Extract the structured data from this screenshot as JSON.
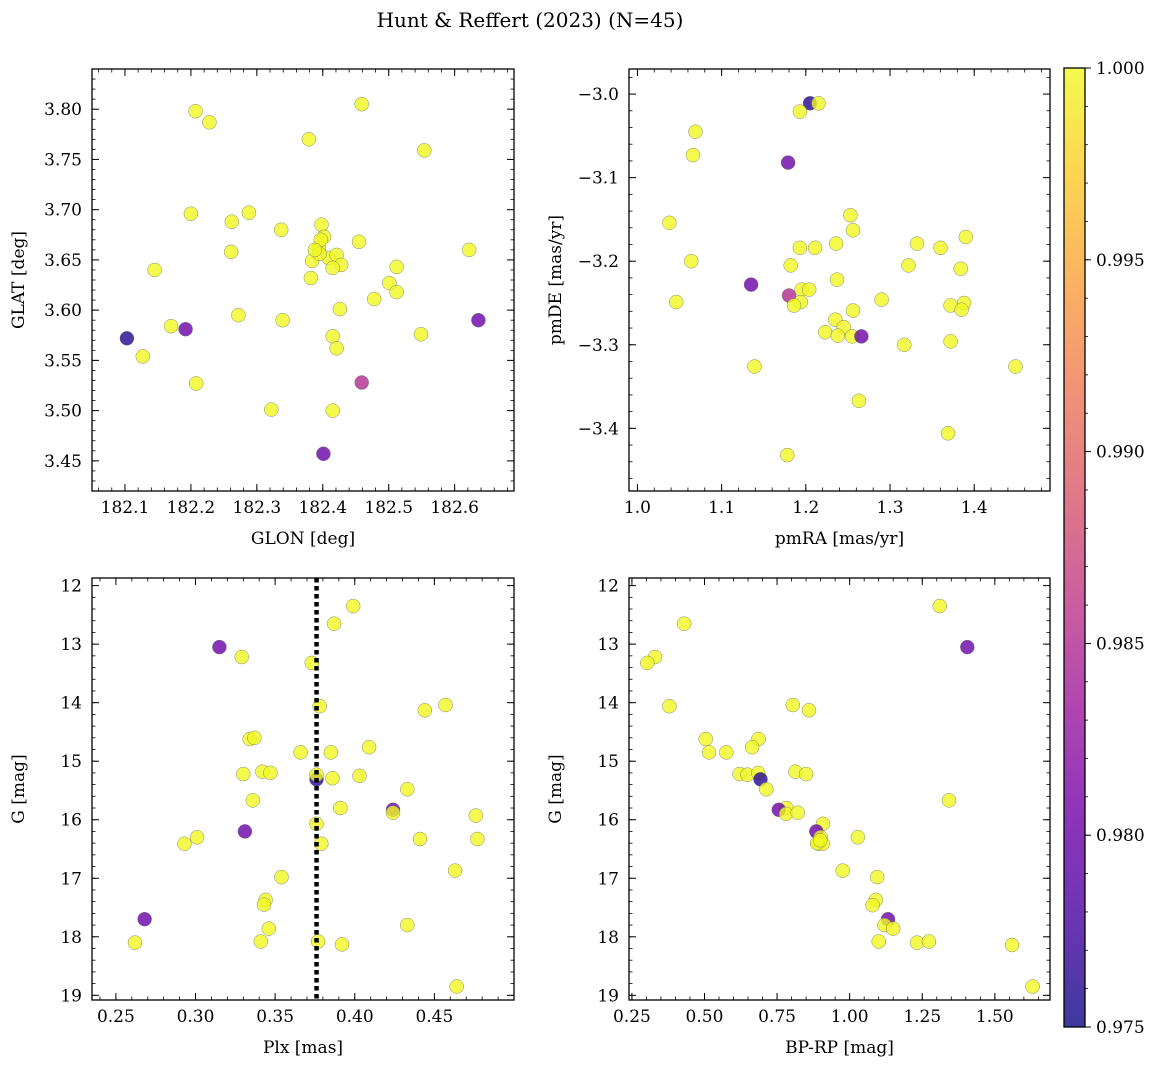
{
  "figure": {
    "title": "Hunt & Reffert (2023) (N=45)"
  },
  "colormap": {
    "name": "plasma",
    "stops": [
      "#0d0887",
      "#46039f",
      "#7201a8",
      "#9c179e",
      "#bd3786",
      "#d8576b",
      "#ed7953",
      "#fb9f3a",
      "#fdca26",
      "#f0f921"
    ],
    "range": [
      0.975,
      1.0
    ],
    "tick_values": [
      0.975,
      0.98,
      0.985,
      0.99,
      0.995,
      1.0
    ],
    "tick_labels": [
      "0.975",
      "0.980",
      "0.985",
      "0.990",
      "0.995",
      "1.000"
    ]
  },
  "chart_data": [
    {
      "type": "scatter",
      "xlabel": "GLON [deg]",
      "ylabel": "GLAT [deg]",
      "xlim": [
        182.05,
        182.69
      ],
      "ylim": [
        3.42,
        3.84
      ],
      "invert_y": false,
      "xticks": [
        182.1,
        182.2,
        182.3,
        182.4,
        182.5,
        182.6
      ],
      "xtick_labels": [
        "182.1",
        "182.2",
        "182.3",
        "182.4",
        "182.5",
        "182.6"
      ],
      "yticks": [
        3.45,
        3.5,
        3.55,
        3.6,
        3.65,
        3.7,
        3.75,
        3.8
      ],
      "ytick_labels": [
        "3.45",
        "3.50",
        "3.55",
        "3.60",
        "3.65",
        "3.70",
        "3.75",
        "3.80"
      ],
      "points": [
        [
          182.207,
          3.798,
          1.0
        ],
        [
          182.228,
          3.787,
          1.0
        ],
        [
          182.459,
          3.805,
          1.0
        ],
        [
          182.554,
          3.759,
          1.0
        ],
        [
          182.379,
          3.77,
          1.0
        ],
        [
          182.2,
          3.696,
          1.0
        ],
        [
          182.288,
          3.697,
          1.0
        ],
        [
          182.262,
          3.688,
          1.0
        ],
        [
          182.337,
          3.68,
          1.0
        ],
        [
          182.398,
          3.685,
          1.0
        ],
        [
          182.402,
          3.673,
          1.0
        ],
        [
          182.394,
          3.662,
          1.0
        ],
        [
          182.261,
          3.658,
          1.0
        ],
        [
          182.455,
          3.668,
          1.0
        ],
        [
          182.409,
          3.652,
          1.0
        ],
        [
          182.384,
          3.649,
          1.0
        ],
        [
          182.421,
          3.655,
          1.0
        ],
        [
          182.428,
          3.645,
          1.0
        ],
        [
          182.415,
          3.642,
          1.0
        ],
        [
          182.145,
          3.64,
          1.0
        ],
        [
          182.382,
          3.632,
          1.0
        ],
        [
          182.512,
          3.643,
          1.0
        ],
        [
          182.622,
          3.66,
          1.0
        ],
        [
          182.501,
          3.627,
          1.0
        ],
        [
          182.512,
          3.618,
          1.0
        ],
        [
          182.478,
          3.611,
          1.0
        ],
        [
          182.426,
          3.601,
          1.0
        ],
        [
          182.272,
          3.595,
          1.0
        ],
        [
          182.339,
          3.59,
          1.0
        ],
        [
          182.17,
          3.584,
          1.0
        ],
        [
          182.192,
          3.581,
          0.98
        ],
        [
          182.103,
          3.572,
          0.976
        ],
        [
          182.127,
          3.554,
          1.0
        ],
        [
          182.415,
          3.574,
          1.0
        ],
        [
          182.421,
          3.562,
          1.0
        ],
        [
          182.549,
          3.576,
          1.0
        ],
        [
          182.636,
          3.59,
          0.98
        ],
        [
          182.208,
          3.527,
          1.0
        ],
        [
          182.459,
          3.528,
          0.985
        ],
        [
          182.322,
          3.501,
          1.0
        ],
        [
          182.415,
          3.5,
          1.0
        ],
        [
          182.401,
          3.457,
          0.98
        ],
        [
          182.395,
          3.656,
          1.0
        ],
        [
          182.397,
          3.67,
          1.0
        ],
        [
          182.388,
          3.66,
          1.0
        ]
      ]
    },
    {
      "type": "scatter",
      "xlabel": "pmRA [mas/yr]",
      "ylabel": "pmDE [mas/yr]",
      "xlim": [
        0.99,
        1.49
      ],
      "ylim": [
        -3.475,
        -2.97
      ],
      "invert_y": false,
      "xticks": [
        1.0,
        1.1,
        1.2,
        1.3,
        1.4
      ],
      "xtick_labels": [
        "1.0",
        "1.1",
        "1.2",
        "1.3",
        "1.4"
      ],
      "yticks": [
        -3.4,
        -3.3,
        -3.2,
        -3.1,
        -3.0
      ],
      "ytick_labels": [
        "−3.4",
        "−3.3",
        "−3.2",
        "−3.1",
        "−3.0"
      ],
      "points": [
        [
          1.205,
          -3.011,
          0.976
        ],
        [
          1.215,
          -3.011,
          1.0
        ],
        [
          1.193,
          -3.021,
          1.0
        ],
        [
          1.069,
          -3.045,
          1.0
        ],
        [
          1.066,
          -3.073,
          1.0
        ],
        [
          1.179,
          -3.082,
          0.98
        ],
        [
          1.038,
          -3.154,
          1.0
        ],
        [
          1.253,
          -3.145,
          1.0
        ],
        [
          1.256,
          -3.163,
          1.0
        ],
        [
          1.332,
          -3.179,
          1.0
        ],
        [
          1.236,
          -3.179,
          1.0
        ],
        [
          1.193,
          -3.184,
          1.0
        ],
        [
          1.211,
          -3.184,
          1.0
        ],
        [
          1.36,
          -3.184,
          1.0
        ],
        [
          1.39,
          -3.171,
          1.0
        ],
        [
          1.064,
          -3.2,
          1.0
        ],
        [
          1.182,
          -3.205,
          1.0
        ],
        [
          1.322,
          -3.205,
          1.0
        ],
        [
          1.384,
          -3.209,
          1.0
        ],
        [
          1.237,
          -3.222,
          1.0
        ],
        [
          1.135,
          -3.228,
          0.98
        ],
        [
          1.195,
          -3.234,
          1.0
        ],
        [
          1.204,
          -3.234,
          1.0
        ],
        [
          1.18,
          -3.241,
          0.985
        ],
        [
          1.046,
          -3.249,
          1.0
        ],
        [
          1.194,
          -3.249,
          1.0
        ],
        [
          1.186,
          -3.253,
          1.0
        ],
        [
          1.372,
          -3.253,
          1.0
        ],
        [
          1.388,
          -3.25,
          1.0
        ],
        [
          1.29,
          -3.246,
          1.0
        ],
        [
          1.385,
          -3.258,
          1.0
        ],
        [
          1.256,
          -3.259,
          1.0
        ],
        [
          1.235,
          -3.27,
          1.0
        ],
        [
          1.245,
          -3.279,
          1.0
        ],
        [
          1.223,
          -3.285,
          1.0
        ],
        [
          1.238,
          -3.289,
          1.0
        ],
        [
          1.255,
          -3.29,
          1.0
        ],
        [
          1.266,
          -3.29,
          0.98
        ],
        [
          1.317,
          -3.3,
          1.0
        ],
        [
          1.372,
          -3.296,
          1.0
        ],
        [
          1.139,
          -3.326,
          1.0
        ],
        [
          1.449,
          -3.326,
          1.0
        ],
        [
          1.263,
          -3.367,
          1.0
        ],
        [
          1.369,
          -3.406,
          1.0
        ],
        [
          1.178,
          -3.432,
          1.0
        ]
      ]
    },
    {
      "type": "scatter",
      "xlabel": "Plx [mas]",
      "ylabel": "G [mag]",
      "xlim": [
        0.235,
        0.5
      ],
      "ylim": [
        19.08,
        11.87
      ],
      "invert_y": true,
      "vline": 0.376,
      "xticks": [
        0.25,
        0.3,
        0.35,
        0.4,
        0.45
      ],
      "xtick_labels": [
        "0.25",
        "0.30",
        "0.35",
        "0.40",
        "0.45"
      ],
      "yticks": [
        12,
        13,
        14,
        15,
        16,
        17,
        18,
        19
      ],
      "ytick_labels": [
        "12",
        "13",
        "14",
        "15",
        "16",
        "17",
        "18",
        "19"
      ],
      "points": [
        [
          0.399,
          12.35,
          1.0
        ],
        [
          0.387,
          12.65,
          1.0
        ],
        [
          0.315,
          13.05,
          0.98
        ],
        [
          0.329,
          13.22,
          1.0
        ],
        [
          0.373,
          13.32,
          1.0
        ],
        [
          0.378,
          14.06,
          1.0
        ],
        [
          0.457,
          14.04,
          1.0
        ],
        [
          0.444,
          14.13,
          1.0
        ],
        [
          0.334,
          14.62,
          1.0
        ],
        [
          0.337,
          14.6,
          1.0
        ],
        [
          0.409,
          14.76,
          1.0
        ],
        [
          0.366,
          14.85,
          1.0
        ],
        [
          0.385,
          14.85,
          1.0
        ],
        [
          0.33,
          15.22,
          1.0
        ],
        [
          0.342,
          15.18,
          1.0
        ],
        [
          0.347,
          15.2,
          1.0
        ],
        [
          0.376,
          15.31,
          0.976
        ],
        [
          0.376,
          15.23,
          1.0
        ],
        [
          0.386,
          15.29,
          1.0
        ],
        [
          0.403,
          15.25,
          1.0
        ],
        [
          0.336,
          15.67,
          1.0
        ],
        [
          0.433,
          15.48,
          1.0
        ],
        [
          0.391,
          15.8,
          1.0
        ],
        [
          0.424,
          15.83,
          0.98
        ],
        [
          0.424,
          15.88,
          1.0
        ],
        [
          0.476,
          15.93,
          1.0
        ],
        [
          0.376,
          16.07,
          1.0
        ],
        [
          0.331,
          16.2,
          0.98
        ],
        [
          0.301,
          16.3,
          1.0
        ],
        [
          0.441,
          16.33,
          1.0
        ],
        [
          0.477,
          16.33,
          1.0
        ],
        [
          0.293,
          16.41,
          1.0
        ],
        [
          0.379,
          16.41,
          1.0
        ],
        [
          0.463,
          16.87,
          1.0
        ],
        [
          0.354,
          16.98,
          1.0
        ],
        [
          0.344,
          17.37,
          1.0
        ],
        [
          0.343,
          17.45,
          1.0
        ],
        [
          0.268,
          17.7,
          0.98
        ],
        [
          0.346,
          17.86,
          1.0
        ],
        [
          0.433,
          17.8,
          1.0
        ],
        [
          0.262,
          18.1,
          1.0
        ],
        [
          0.341,
          18.08,
          1.0
        ],
        [
          0.377,
          18.08,
          1.0
        ],
        [
          0.392,
          18.13,
          1.0
        ],
        [
          0.464,
          18.85,
          1.0
        ]
      ]
    },
    {
      "type": "scatter",
      "xlabel": "BP-RP [mag]",
      "ylabel": "G [mag]",
      "xlim": [
        0.24,
        1.69
      ],
      "ylim": [
        19.08,
        11.87
      ],
      "invert_y": true,
      "xticks": [
        0.25,
        0.5,
        0.75,
        1.0,
        1.25,
        1.5
      ],
      "xtick_labels": [
        "0.25",
        "0.50",
        "0.75",
        "1.00",
        "1.25",
        "1.50"
      ],
      "yticks": [
        12,
        13,
        14,
        15,
        16,
        17,
        18,
        19
      ],
      "ytick_labels": [
        "12",
        "13",
        "14",
        "15",
        "16",
        "17",
        "18",
        "19"
      ],
      "points": [
        [
          1.31,
          12.35,
          1.0
        ],
        [
          0.43,
          12.65,
          1.0
        ],
        [
          1.405,
          13.05,
          0.98
        ],
        [
          0.33,
          13.22,
          1.0
        ],
        [
          0.303,
          13.32,
          1.0
        ],
        [
          0.379,
          14.06,
          1.0
        ],
        [
          0.804,
          14.04,
          1.0
        ],
        [
          0.86,
          14.13,
          1.0
        ],
        [
          0.504,
          14.62,
          1.0
        ],
        [
          0.686,
          14.62,
          1.0
        ],
        [
          0.664,
          14.76,
          1.0
        ],
        [
          0.516,
          14.85,
          1.0
        ],
        [
          0.575,
          14.85,
          1.0
        ],
        [
          0.621,
          15.22,
          1.0
        ],
        [
          0.648,
          15.23,
          1.0
        ],
        [
          0.685,
          15.2,
          1.0
        ],
        [
          0.693,
          15.31,
          0.976
        ],
        [
          0.813,
          15.18,
          1.0
        ],
        [
          0.85,
          15.22,
          1.0
        ],
        [
          0.713,
          15.48,
          1.0
        ],
        [
          1.342,
          15.67,
          1.0
        ],
        [
          0.782,
          15.8,
          1.0
        ],
        [
          0.756,
          15.83,
          0.98
        ],
        [
          0.781,
          15.9,
          1.0
        ],
        [
          0.821,
          15.88,
          1.0
        ],
        [
          0.908,
          16.07,
          1.0
        ],
        [
          0.885,
          16.2,
          0.98
        ],
        [
          0.9,
          16.3,
          1.0
        ],
        [
          1.028,
          16.3,
          1.0
        ],
        [
          0.893,
          16.41,
          1.0
        ],
        [
          0.907,
          16.41,
          1.0
        ],
        [
          0.888,
          16.4,
          1.0
        ],
        [
          0.976,
          16.87,
          1.0
        ],
        [
          1.095,
          16.98,
          1.0
        ],
        [
          1.09,
          17.37,
          1.0
        ],
        [
          1.079,
          17.46,
          1.0
        ],
        [
          1.132,
          17.7,
          0.98
        ],
        [
          1.12,
          17.8,
          1.0
        ],
        [
          1.15,
          17.86,
          1.0
        ],
        [
          1.1,
          18.08,
          1.0
        ],
        [
          1.232,
          18.1,
          1.0
        ],
        [
          1.273,
          18.08,
          1.0
        ],
        [
          1.559,
          18.14,
          1.0
        ],
        [
          1.63,
          18.85,
          1.0
        ],
        [
          0.899,
          16.35,
          1.0
        ]
      ]
    }
  ]
}
